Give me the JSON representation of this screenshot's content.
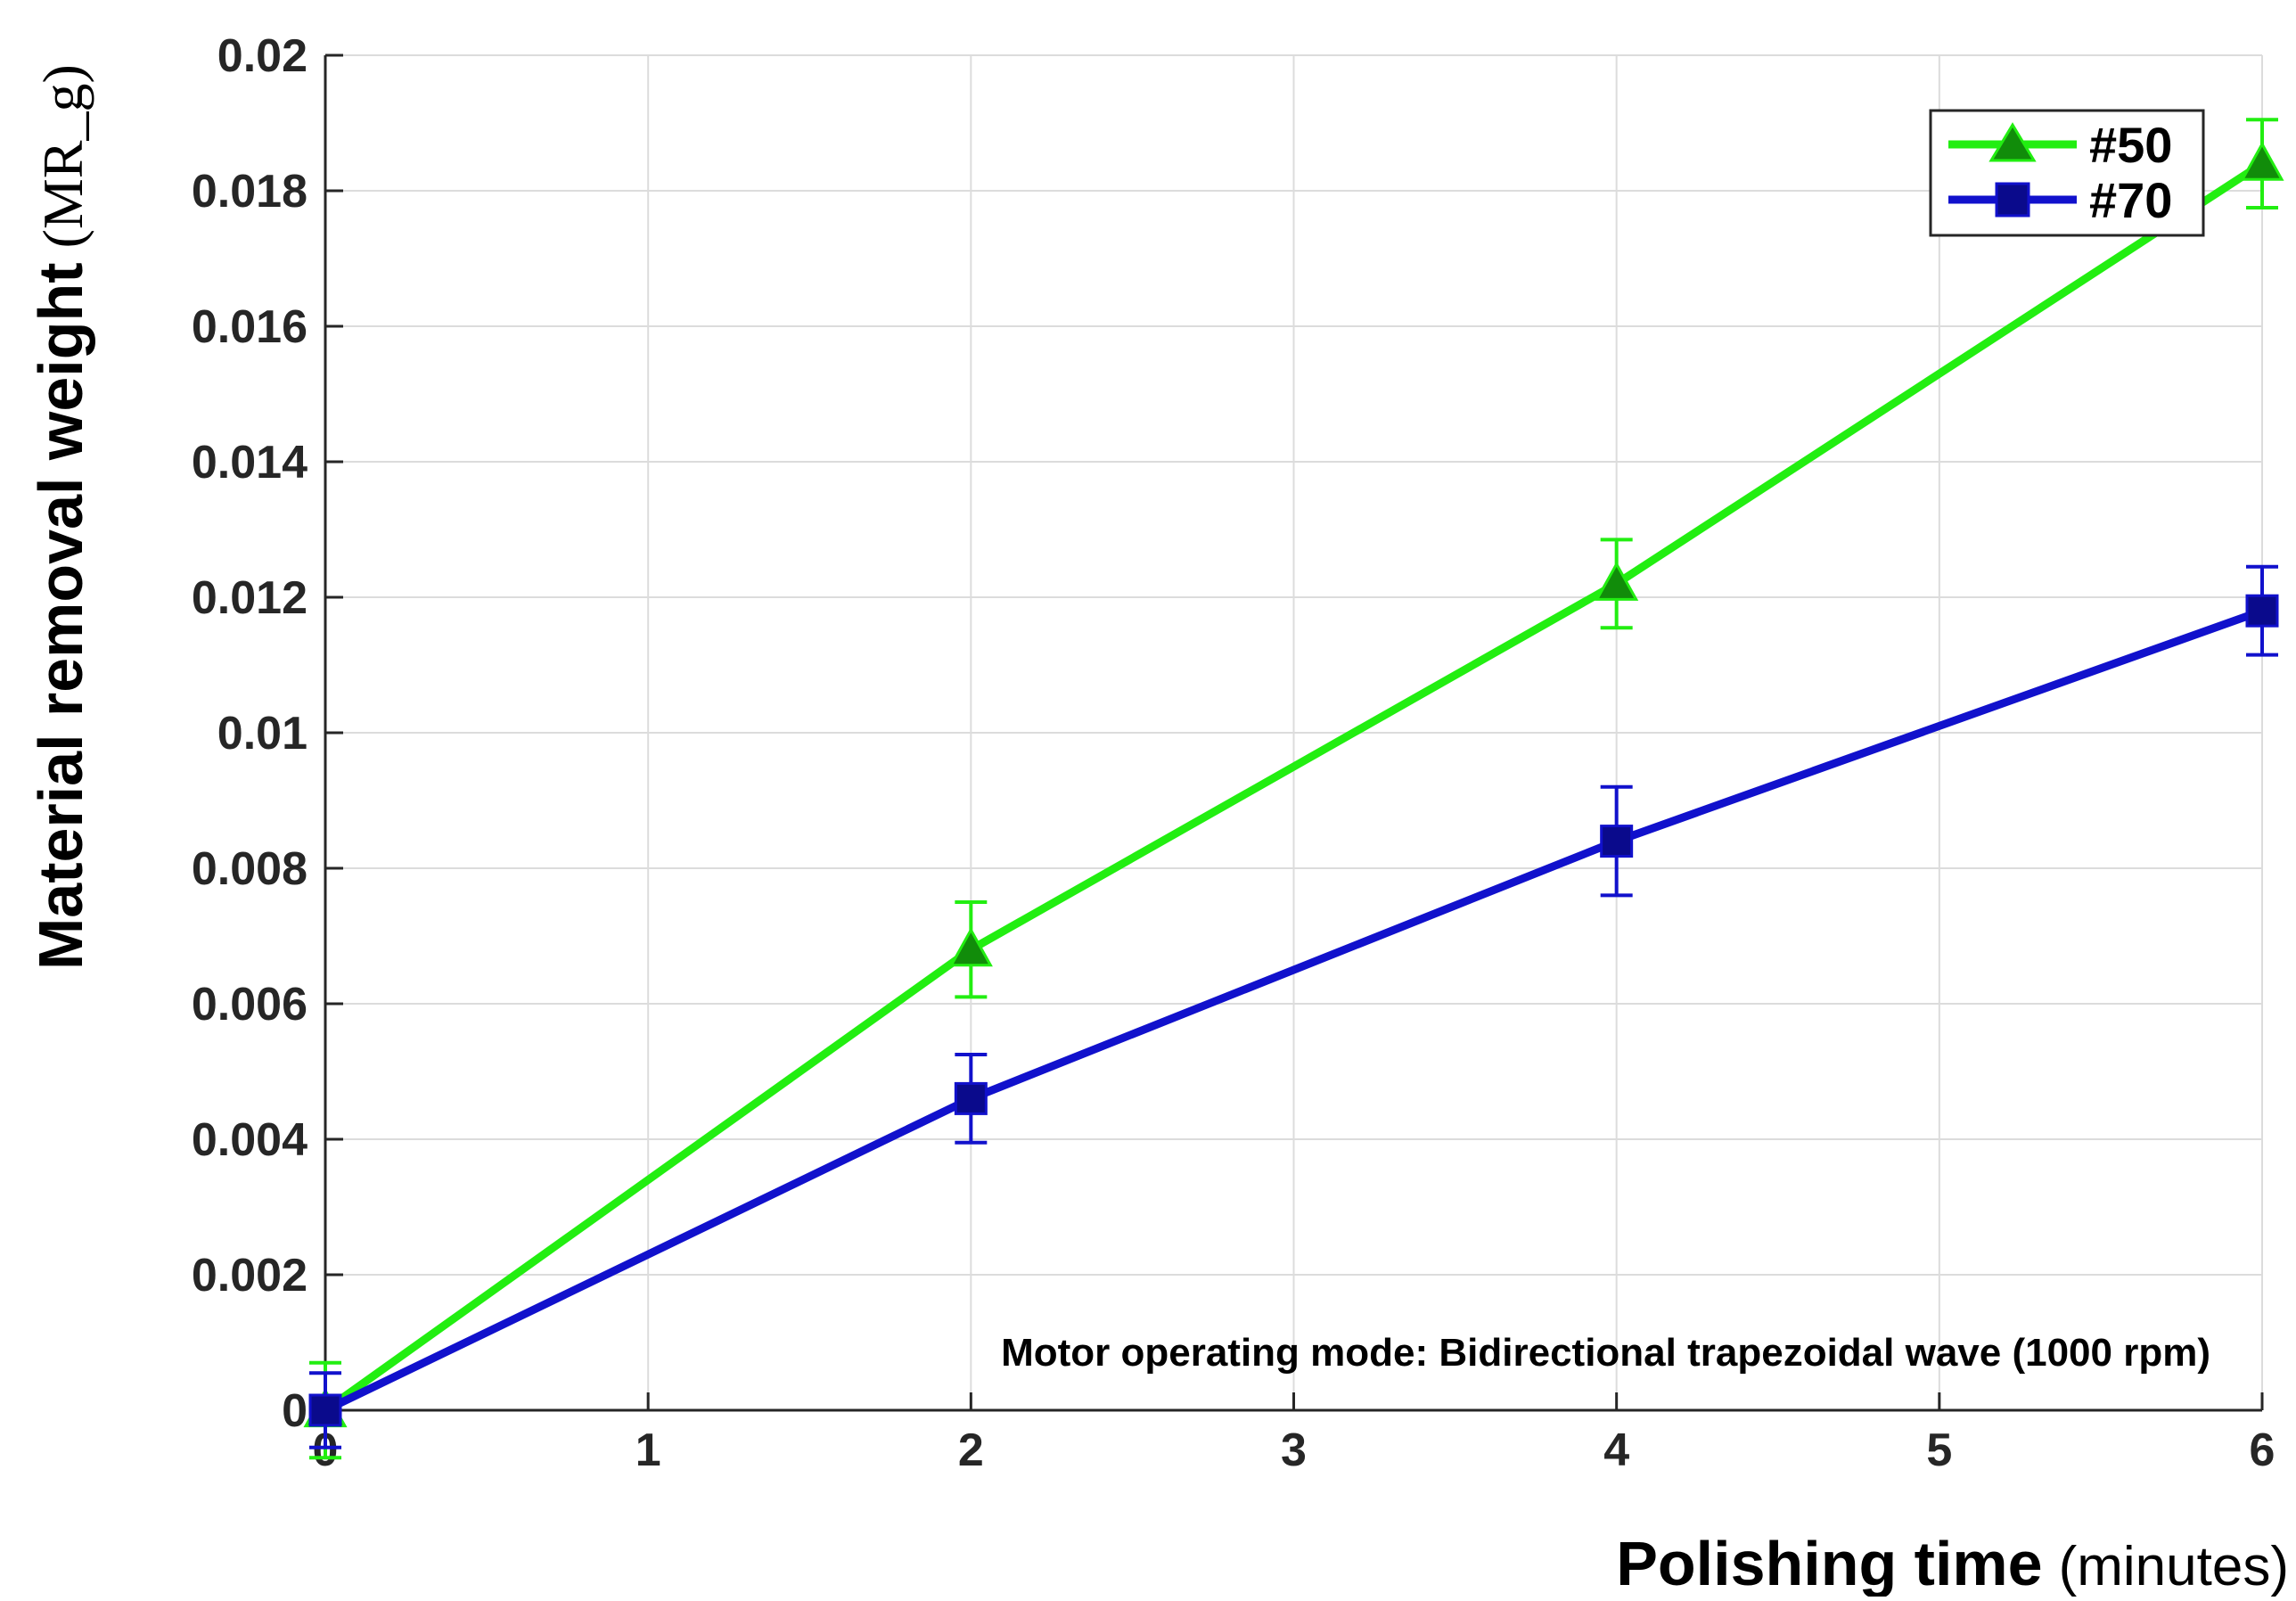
{
  "chart_data": {
    "type": "line",
    "x": [
      0,
      2,
      4,
      6
    ],
    "series": [
      {
        "name": "#50",
        "values": [
          0,
          0.0068,
          0.0122,
          0.0184
        ],
        "errors": [
          0.0007,
          0.0007,
          0.00065,
          0.00065
        ],
        "color": "#22ee11",
        "marker": "triangle",
        "marker_color": "#118c0a"
      },
      {
        "name": "#70",
        "values": [
          0,
          0.0046,
          0.0084,
          0.0118
        ],
        "errors": [
          0.00055,
          0.00065,
          0.0008,
          0.00065
        ],
        "color": "#1111cc",
        "marker": "square",
        "marker_color": "#0a0a8c"
      }
    ],
    "xlim": [
      0,
      6
    ],
    "ylim": [
      0,
      0.02
    ],
    "x_ticks": [
      "0",
      "1",
      "2",
      "3",
      "4",
      "5",
      "6"
    ],
    "y_ticks": [
      "0",
      "0.002",
      "0.004",
      "0.006",
      "0.008",
      "0.01",
      "0.012",
      "0.014",
      "0.016",
      "0.018",
      "0.02"
    ],
    "xlabel": "Polishing time",
    "xlabel_unit": "(minutes)",
    "ylabel": "Material removal weight",
    "ylabel_unit": "(MR_g)",
    "annotation": "Motor operating mode: Bidirectional trapezoidal wave (1000 rpm)",
    "grid": true,
    "legend_position": "top-right"
  }
}
